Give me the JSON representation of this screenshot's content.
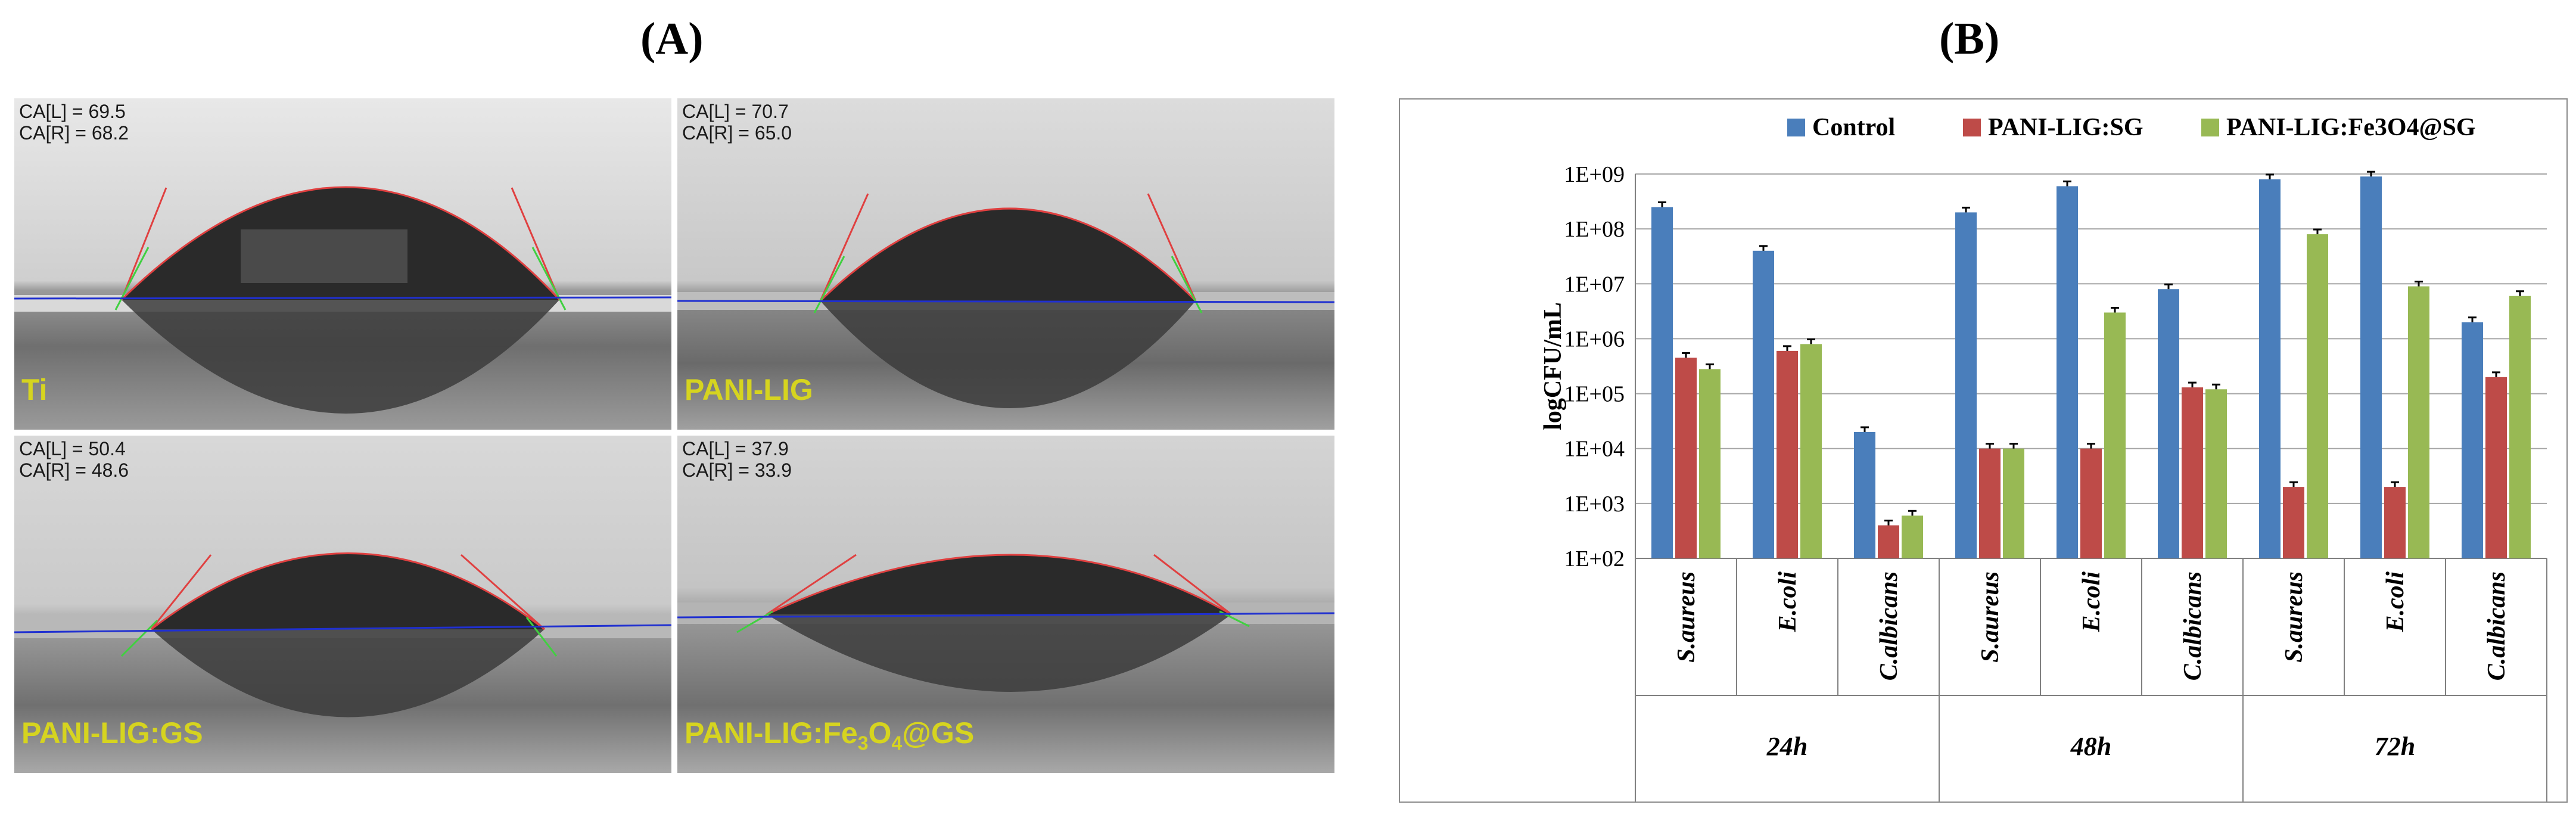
{
  "panel_a": {
    "letter": "(A)",
    "images": [
      {
        "sample": "Ti",
        "ca_left": "CA[L] = 69.5",
        "ca_right": "CA[R] = 68.2"
      },
      {
        "sample": "PANI-LIG",
        "ca_left": "CA[L] = 70.7",
        "ca_right": "CA[R] = 65.0"
      },
      {
        "sample": "PANI-LIG:GS",
        "ca_left": "CA[L] = 50.4",
        "ca_right": "CA[R] = 48.6"
      },
      {
        "sample": "PANI-LIG:Fe3O4@GS",
        "sample_parts": [
          "PANI-LIG:Fe",
          "3",
          "O",
          "4",
          "@GS"
        ],
        "ca_left": "CA[L] = 37.9",
        "ca_right": "CA[R] = 33.9"
      }
    ]
  },
  "panel_b": {
    "letter": "(B)"
  },
  "chart_data": {
    "type": "bar",
    "ylabel": "logCFU/mL",
    "yscale": "log",
    "ylim": [
      100,
      1000000000
    ],
    "yticks": [
      "1E+02",
      "1E+03",
      "1E+04",
      "1E+05",
      "1E+06",
      "1E+07",
      "1E+08",
      "1E+09"
    ],
    "grid": true,
    "legend_position": "top",
    "groups": [
      {
        "label": "24h",
        "categories": [
          "S.aureus",
          "E.coli",
          "C.albicans"
        ]
      },
      {
        "label": "48h",
        "categories": [
          "S.aureus",
          "E.coli",
          "C.albicans"
        ]
      },
      {
        "label": "72h",
        "categories": [
          "S.aureus",
          "E.coli",
          "C.albicans"
        ]
      }
    ],
    "series": [
      {
        "name": "Control",
        "color": "#4a7ebb",
        "values": [
          250000000,
          40000000,
          20000,
          200000000,
          600000000,
          8000000,
          800000000,
          900000000,
          2000000
        ]
      },
      {
        "name": "PANI-LIG:SG",
        "color": "#be4b48",
        "values": [
          450000,
          600000,
          400,
          10000,
          10000,
          130000,
          2000,
          2000,
          200000
        ]
      },
      {
        "name": "PANI-LIG:Fe3O4@SG",
        "color": "#98b954",
        "values": [
          280000,
          800000,
          600,
          10000,
          3000000,
          120000,
          80000000,
          9000000,
          6000000
        ]
      }
    ]
  }
}
